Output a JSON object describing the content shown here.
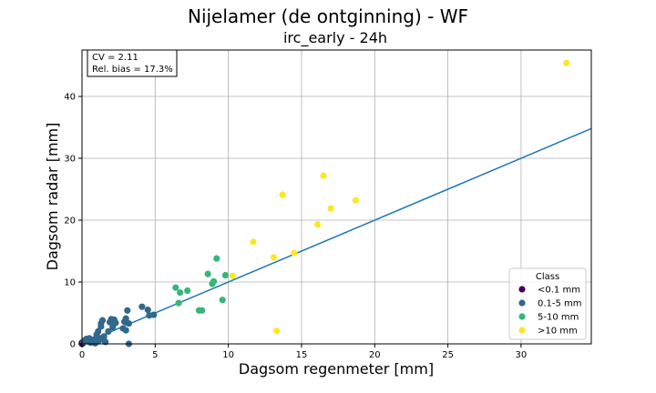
{
  "chart_data": {
    "type": "scatter",
    "title": "Nijelamer (de ontginning) - WF",
    "subtitle": "irc_early - 24h",
    "xlabel": "Dagsom regenmeter [mm]",
    "ylabel": "Dagsom radar [mm]",
    "xlim": [
      0,
      34.8
    ],
    "ylim": [
      0,
      47.5
    ],
    "xticks": [
      "0",
      "5",
      "10",
      "15",
      "20",
      "25",
      "30"
    ],
    "yticks": [
      "0",
      "10",
      "20",
      "30",
      "40"
    ],
    "grid": true,
    "annotation": [
      "CV = 2.11",
      "Rel. bias = 17.3%"
    ],
    "fit_line": {
      "slope": 1.0,
      "intercept": 0.0
    },
    "legend": {
      "title": "Class",
      "position": "lower-right",
      "entries": [
        {
          "label": "<0.1 mm",
          "color": "#440154"
        },
        {
          "label": "0.1-5 mm",
          "color": "#31688e"
        },
        {
          "label": "5-10 mm",
          "color": "#35b779"
        },
        {
          "label": ">10 mm",
          "color": "#fde725"
        }
      ]
    },
    "series": [
      {
        "name": "<0.1 mm",
        "color": "#440154",
        "points": [
          [
            0.0,
            0.0
          ],
          [
            0.05,
            0.1
          ],
          [
            0.0,
            0.2
          ]
        ]
      },
      {
        "name": "0.1-5 mm",
        "color": "#31688e",
        "points": [
          [
            0.1,
            0.3
          ],
          [
            0.2,
            0.6
          ],
          [
            0.3,
            0.8
          ],
          [
            0.4,
            0.5
          ],
          [
            0.5,
            0.9
          ],
          [
            0.5,
            0.3
          ],
          [
            0.6,
            0.2
          ],
          [
            0.8,
            0.7
          ],
          [
            0.9,
            0.1
          ],
          [
            1.0,
            1.5
          ],
          [
            1.1,
            2.0
          ],
          [
            1.1,
            0.4
          ],
          [
            1.2,
            0.9
          ],
          [
            1.3,
            2.8
          ],
          [
            1.3,
            3.3
          ],
          [
            1.4,
            3.8
          ],
          [
            1.5,
            1.2
          ],
          [
            1.5,
            0.6
          ],
          [
            1.6,
            0.3
          ],
          [
            1.8,
            2.0
          ],
          [
            1.9,
            3.5
          ],
          [
            2.0,
            4.0
          ],
          [
            2.1,
            2.7
          ],
          [
            2.2,
            3.9
          ],
          [
            2.3,
            3.4
          ],
          [
            2.8,
            2.5
          ],
          [
            2.9,
            3.6
          ],
          [
            3.0,
            4.1
          ],
          [
            3.0,
            2.2
          ],
          [
            3.1,
            5.4
          ],
          [
            3.2,
            3.3
          ],
          [
            3.2,
            0.0
          ],
          [
            4.1,
            6.0
          ],
          [
            4.5,
            5.5
          ],
          [
            4.6,
            4.6
          ],
          [
            4.9,
            4.7
          ]
        ]
      },
      {
        "name": "5-10 mm",
        "color": "#35b779",
        "points": [
          [
            6.4,
            9.1
          ],
          [
            6.6,
            6.6
          ],
          [
            6.7,
            8.3
          ],
          [
            7.2,
            8.6
          ],
          [
            8.0,
            5.4
          ],
          [
            8.2,
            5.4
          ],
          [
            8.6,
            11.3
          ],
          [
            8.9,
            9.7
          ],
          [
            9.0,
            10.1
          ],
          [
            9.2,
            13.8
          ],
          [
            9.6,
            7.1
          ],
          [
            9.8,
            11.1
          ]
        ]
      },
      {
        "name": ">10 mm",
        "color": "#fde725",
        "points": [
          [
            10.3,
            11.0
          ],
          [
            11.7,
            16.5
          ],
          [
            13.1,
            14.0
          ],
          [
            13.3,
            2.1
          ],
          [
            13.7,
            24.1
          ],
          [
            14.5,
            14.7
          ],
          [
            16.1,
            19.3
          ],
          [
            16.5,
            27.2
          ],
          [
            17.0,
            21.9
          ],
          [
            18.7,
            23.2
          ],
          [
            33.1,
            45.4
          ]
        ]
      }
    ]
  }
}
